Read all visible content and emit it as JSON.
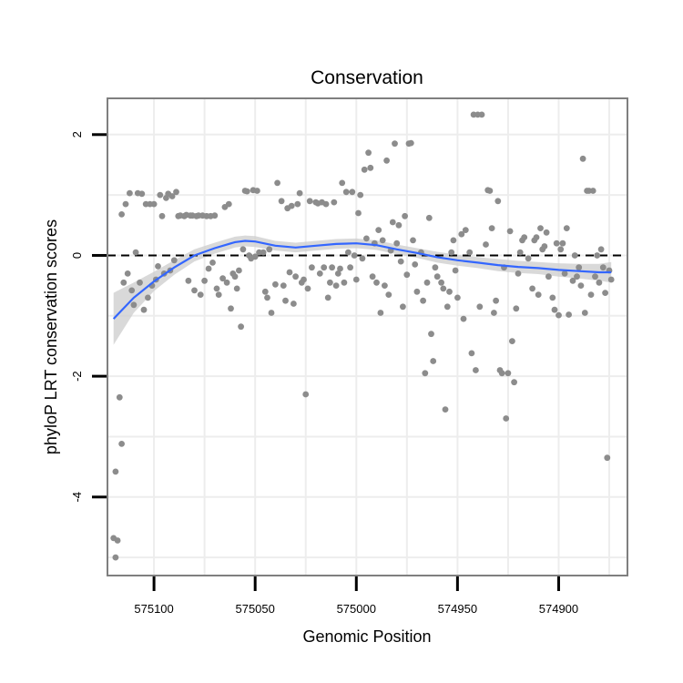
{
  "chart_data": {
    "type": "scatter",
    "title": "Conservation",
    "xlabel": "Genomic Position",
    "ylabel": "phyloP LRT conservation scores",
    "x_reversed": true,
    "xlim": [
      575123,
      574866
    ],
    "ylim": [
      -5.3,
      2.6
    ],
    "x_ticks": [
      575100,
      575050,
      575000,
      574950,
      574900
    ],
    "x_tick_labels": [
      "575100",
      "575050",
      "575000",
      "574950",
      "574900"
    ],
    "y_ticks": [
      2,
      0,
      -2,
      -4
    ],
    "y_tick_labels": [
      "2",
      "0",
      "-2",
      "-4"
    ],
    "grid": true,
    "reference_line": {
      "y": 0,
      "style": "dashed",
      "color": "#000000"
    },
    "colors": {
      "points": "#8c8c8c",
      "smooth": "#3366ff",
      "ribbon": "#cccccc",
      "panel_border": "#7f7f7f",
      "grid": "#ededed"
    },
    "series": [
      {
        "name": "scores",
        "type": "scatter",
        "points": [
          [
            575120,
            -4.68
          ],
          [
            575119,
            -5.0
          ],
          [
            575119,
            -3.58
          ],
          [
            575118,
            -4.72
          ],
          [
            575117,
            -2.35
          ],
          [
            575116,
            -3.12
          ],
          [
            575116,
            0.68
          ],
          [
            575115,
            -0.45
          ],
          [
            575114,
            0.85
          ],
          [
            575113,
            -0.3
          ],
          [
            575112,
            1.03
          ],
          [
            575111,
            -0.58
          ],
          [
            575110,
            -0.82
          ],
          [
            575109,
            0.05
          ],
          [
            575108,
            1.03
          ],
          [
            575107,
            -0.45
          ],
          [
            575106,
            1.02
          ],
          [
            575105,
            -0.9
          ],
          [
            575104,
            0.85
          ],
          [
            575103,
            -0.7
          ],
          [
            575102,
            0.85
          ],
          [
            575101,
            -0.5
          ],
          [
            575100,
            0.85
          ],
          [
            575099,
            -0.4
          ],
          [
            575098,
            -0.18
          ],
          [
            575097,
            1.0
          ],
          [
            575096,
            0.65
          ],
          [
            575095,
            -0.3
          ],
          [
            575094,
            0.95
          ],
          [
            575093,
            1.02
          ],
          [
            575092,
            -0.25
          ],
          [
            575091,
            0.98
          ],
          [
            575090,
            -0.08
          ],
          [
            575089,
            1.05
          ],
          [
            575088,
            0.65
          ],
          [
            575087,
            0.66
          ],
          [
            575085,
            0.65
          ],
          [
            575084,
            0.67
          ],
          [
            575083,
            -0.42
          ],
          [
            575082,
            0.66
          ],
          [
            575081,
            0.66
          ],
          [
            575080,
            -0.58
          ],
          [
            575079,
            0.65
          ],
          [
            575078,
            0.66
          ],
          [
            575077,
            -0.65
          ],
          [
            575076,
            0.66
          ],
          [
            575075,
            -0.42
          ],
          [
            575074,
            0.65
          ],
          [
            575073,
            -0.22
          ],
          [
            575072,
            0.65
          ],
          [
            575071,
            -0.12
          ],
          [
            575070,
            0.66
          ],
          [
            575069,
            -0.55
          ],
          [
            575068,
            -0.65
          ],
          [
            575066,
            -0.38
          ],
          [
            575065,
            0.8
          ],
          [
            575064,
            -0.45
          ],
          [
            575063,
            0.85
          ],
          [
            575062,
            -0.88
          ],
          [
            575061,
            -0.3
          ],
          [
            575060,
            -0.35
          ],
          [
            575059,
            -0.55
          ],
          [
            575058,
            -0.25
          ],
          [
            575057,
            -1.18
          ],
          [
            575056,
            0.1
          ],
          [
            575055,
            1.07
          ],
          [
            575054,
            1.06
          ],
          [
            575053,
            0.0
          ],
          [
            575052,
            -0.05
          ],
          [
            575051,
            1.08
          ],
          [
            575050,
            -0.02
          ],
          [
            575049,
            1.07
          ],
          [
            575048,
            0.05
          ],
          [
            575046,
            0.05
          ],
          [
            575045,
            -0.6
          ],
          [
            575044,
            -0.7
          ],
          [
            575043,
            0.1
          ],
          [
            575042,
            -0.95
          ],
          [
            575040,
            -0.48
          ],
          [
            575039,
            1.2
          ],
          [
            575037,
            0.9
          ],
          [
            575036,
            -0.5
          ],
          [
            575035,
            -0.75
          ],
          [
            575034,
            0.78
          ],
          [
            575033,
            -0.28
          ],
          [
            575032,
            0.82
          ],
          [
            575031,
            -0.8
          ],
          [
            575030,
            -0.35
          ],
          [
            575029,
            0.85
          ],
          [
            575028,
            1.03
          ],
          [
            575027,
            -0.45
          ],
          [
            575026,
            -0.4
          ],
          [
            575025,
            -2.3
          ],
          [
            575024,
            -0.55
          ],
          [
            575023,
            0.9
          ],
          [
            575022,
            -0.2
          ],
          [
            575020,
            0.88
          ],
          [
            575019,
            0.86
          ],
          [
            575018,
            -0.3
          ],
          [
            575017,
            0.88
          ],
          [
            575016,
            -0.2
          ],
          [
            575015,
            0.85
          ],
          [
            575014,
            -0.7
          ],
          [
            575013,
            -0.45
          ],
          [
            575012,
            -0.2
          ],
          [
            575011,
            0.88
          ],
          [
            575010,
            -0.5
          ],
          [
            575009,
            -0.3
          ],
          [
            575008,
            -0.22
          ],
          [
            575007,
            1.2
          ],
          [
            575006,
            -0.45
          ],
          [
            575005,
            1.05
          ],
          [
            575004,
            0.05
          ],
          [
            575003,
            -0.2
          ],
          [
            575002,
            1.05
          ],
          [
            575001,
            0.0
          ],
          [
            575000,
            -0.4
          ],
          [
            574999,
            0.7
          ],
          [
            574998,
            1.0
          ],
          [
            574997,
            -0.05
          ],
          [
            574996,
            1.42
          ],
          [
            574995,
            0.28
          ],
          [
            574994,
            1.7
          ],
          [
            574993,
            1.45
          ],
          [
            574992,
            -0.35
          ],
          [
            574991,
            0.2
          ],
          [
            574990,
            -0.45
          ],
          [
            574989,
            0.42
          ],
          [
            574988,
            -0.95
          ],
          [
            574987,
            0.25
          ],
          [
            574986,
            -0.5
          ],
          [
            574985,
            1.57
          ],
          [
            574984,
            -0.65
          ],
          [
            574983,
            0.08
          ],
          [
            574982,
            0.55
          ],
          [
            574981,
            1.85
          ],
          [
            574980,
            0.2
          ],
          [
            574979,
            0.5
          ],
          [
            574978,
            -0.1
          ],
          [
            574977,
            -0.85
          ],
          [
            574976,
            0.65
          ],
          [
            574975,
            -0.32
          ],
          [
            574974,
            1.85
          ],
          [
            574973,
            1.86
          ],
          [
            574972,
            0.25
          ],
          [
            574971,
            -0.15
          ],
          [
            574970,
            -0.6
          ],
          [
            574968,
            0.05
          ],
          [
            574967,
            -0.75
          ],
          [
            574966,
            -1.95
          ],
          [
            574965,
            -0.45
          ],
          [
            574964,
            0.62
          ],
          [
            574963,
            -1.3
          ],
          [
            574962,
            -1.75
          ],
          [
            574961,
            -0.2
          ],
          [
            574960,
            -0.35
          ],
          [
            574958,
            -0.45
          ],
          [
            574957,
            -0.55
          ],
          [
            574956,
            -2.55
          ],
          [
            574955,
            -0.85
          ],
          [
            574954,
            -0.6
          ],
          [
            574953,
            0.05
          ],
          [
            574952,
            0.25
          ],
          [
            574951,
            -0.25
          ],
          [
            574950,
            -0.7
          ],
          [
            574948,
            0.35
          ],
          [
            574947,
            -1.05
          ],
          [
            574946,
            0.42
          ],
          [
            574944,
            0.05
          ],
          [
            574943,
            -1.62
          ],
          [
            574942,
            2.33
          ],
          [
            574941,
            -1.9
          ],
          [
            574940,
            2.33
          ],
          [
            574939,
            -0.85
          ],
          [
            574938,
            2.33
          ],
          [
            574936,
            0.18
          ],
          [
            574935,
            1.08
          ],
          [
            574934,
            1.07
          ],
          [
            574933,
            0.45
          ],
          [
            574932,
            -0.95
          ],
          [
            574931,
            -0.75
          ],
          [
            574930,
            0.9
          ],
          [
            574929,
            -1.9
          ],
          [
            574928,
            -1.95
          ],
          [
            574927,
            -0.2
          ],
          [
            574926,
            -2.7
          ],
          [
            574925,
            -1.95
          ],
          [
            574924,
            0.4
          ],
          [
            574923,
            -1.42
          ],
          [
            574922,
            -2.1
          ],
          [
            574921,
            -0.88
          ],
          [
            574920,
            -0.3
          ],
          [
            574919,
            0.05
          ],
          [
            574918,
            0.25
          ],
          [
            574917,
            0.3
          ],
          [
            574915,
            -0.05
          ],
          [
            574913,
            -0.55
          ],
          [
            574912,
            0.25
          ],
          [
            574911,
            0.3
          ],
          [
            574910,
            -0.65
          ],
          [
            574909,
            0.45
          ],
          [
            574908,
            0.1
          ],
          [
            574907,
            0.15
          ],
          [
            574906,
            0.38
          ],
          [
            574905,
            -0.35
          ],
          [
            574903,
            -0.7
          ],
          [
            574902,
            -0.9
          ],
          [
            574901,
            0.2
          ],
          [
            574900,
            -0.99
          ],
          [
            574899,
            0.1
          ],
          [
            574898,
            0.2
          ],
          [
            574897,
            -0.3
          ],
          [
            574896,
            0.45
          ],
          [
            574895,
            -0.98
          ],
          [
            574893,
            -0.42
          ],
          [
            574892,
            0.0
          ],
          [
            574891,
            -0.35
          ],
          [
            574890,
            -0.2
          ],
          [
            574889,
            -0.5
          ],
          [
            574888,
            1.6
          ],
          [
            574887,
            -0.95
          ],
          [
            574886,
            1.07
          ],
          [
            574885,
            1.07
          ],
          [
            574884,
            -0.65
          ],
          [
            574883,
            1.07
          ],
          [
            574882,
            -0.35
          ],
          [
            574881,
            0.0
          ],
          [
            574880,
            -0.45
          ],
          [
            574879,
            0.1
          ],
          [
            574878,
            -0.2
          ],
          [
            574877,
            -0.62
          ],
          [
            574876,
            -3.35
          ],
          [
            574875,
            -0.25
          ],
          [
            574874,
            -0.4
          ]
        ]
      },
      {
        "name": "loess fit",
        "type": "line",
        "x": [
          575120,
          575110,
          575100,
          575090,
          575080,
          575070,
          575060,
          575055,
          575050,
          575040,
          575030,
          575020,
          575010,
          575000,
          574990,
          574980,
          574970,
          574960,
          574950,
          574940,
          574930,
          574920,
          574910,
          574900,
          574890,
          574880,
          574874
        ],
        "y": [
          -1.05,
          -0.7,
          -0.43,
          -0.2,
          0.0,
          0.12,
          0.22,
          0.24,
          0.23,
          0.16,
          0.13,
          0.16,
          0.19,
          0.2,
          0.17,
          0.1,
          0.04,
          -0.03,
          -0.08,
          -0.12,
          -0.16,
          -0.19,
          -0.21,
          -0.24,
          -0.26,
          -0.28,
          -0.28
        ],
        "se": [
          0.43,
          0.25,
          0.16,
          0.12,
          0.1,
          0.09,
          0.09,
          0.09,
          0.09,
          0.08,
          0.08,
          0.08,
          0.08,
          0.08,
          0.08,
          0.08,
          0.08,
          0.09,
          0.09,
          0.09,
          0.1,
          0.1,
          0.1,
          0.11,
          0.12,
          0.14,
          0.17
        ]
      }
    ]
  }
}
